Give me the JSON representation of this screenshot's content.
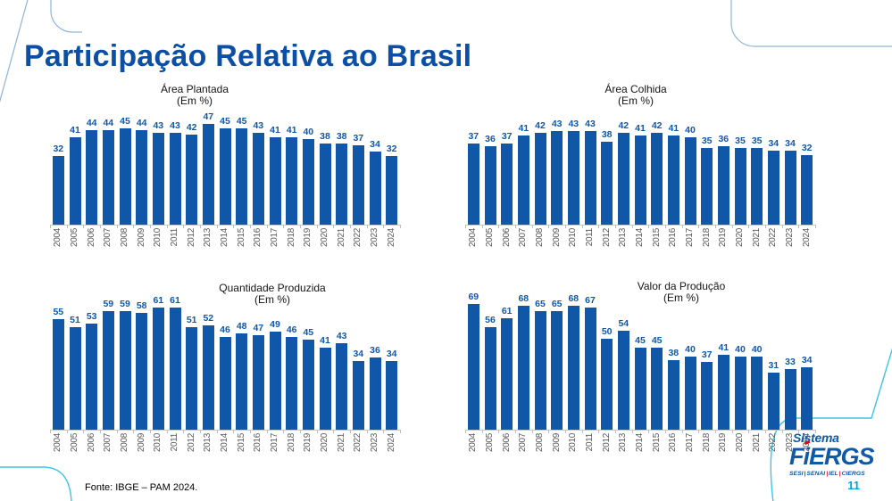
{
  "slide": {
    "title": "Participação Relativa ao Brasil",
    "source": "Fonte: IBGE – PAM 2024.",
    "page_number": "11",
    "logo": {
      "line1": "Sistema",
      "line2_prefix": "F",
      "line2_i": "i",
      "line2_suffix": "ERGS",
      "sub_parts": [
        "SESI",
        "SENAI",
        "IEL",
        "CIERGS"
      ]
    }
  },
  "colors": {
    "bar": "#1157A8",
    "title": "#0B4FA6",
    "value_label": "#1157A8",
    "axis_label": "#595959",
    "deco_top": "#8FB3DA",
    "deco_bottom": "#3FC4E6",
    "page_number": "#00A3DC",
    "logo_blue": "#0E59A9",
    "logo_red": "#E30613"
  },
  "chart_data": [
    {
      "type": "bar",
      "title": "Área Plantada",
      "subtitle": "(Em %)",
      "categories": [
        "2004",
        "2005",
        "2006",
        "2007",
        "2008",
        "2009",
        "2010",
        "2011",
        "2012",
        "2013",
        "2014",
        "2015",
        "2016",
        "2017",
        "2018",
        "2019",
        "2020",
        "2021",
        "2022",
        "2023",
        "2024"
      ],
      "values": [
        32,
        41,
        44,
        44,
        45,
        44,
        43,
        43,
        42,
        47,
        45,
        45,
        43,
        41,
        41,
        40,
        38,
        38,
        37,
        34,
        32
      ],
      "xlabel": "",
      "ylabel": "",
      "ylim": [
        0,
        50
      ],
      "grid": false,
      "legend": "none"
    },
    {
      "type": "bar",
      "title": "Área Colhida",
      "subtitle": "(Em %)",
      "categories": [
        "2004",
        "2005",
        "2006",
        "2007",
        "2008",
        "2009",
        "2010",
        "2011",
        "2012",
        "2013",
        "2014",
        "2015",
        "2016",
        "2017",
        "2018",
        "2019",
        "2020",
        "2021",
        "2022",
        "2023",
        "2024"
      ],
      "values": [
        37,
        36,
        37,
        41,
        42,
        43,
        43,
        43,
        38,
        42,
        41,
        42,
        41,
        40,
        35,
        36,
        35,
        35,
        34,
        34,
        32
      ],
      "xlabel": "",
      "ylabel": "",
      "ylim": [
        0,
        50
      ],
      "grid": false,
      "legend": "none"
    },
    {
      "type": "bar",
      "title": "Quantidade Produzida",
      "subtitle": "(Em %)",
      "categories": [
        "2004",
        "2005",
        "2006",
        "2007",
        "2008",
        "2009",
        "2010",
        "2011",
        "2012",
        "2013",
        "2014",
        "2015",
        "2016",
        "2017",
        "2018",
        "2019",
        "2020",
        "2021",
        "2022",
        "2023",
        "2024"
      ],
      "values": [
        55,
        51,
        53,
        59,
        59,
        58,
        61,
        61,
        51,
        52,
        46,
        48,
        47,
        49,
        46,
        45,
        41,
        43,
        34,
        36,
        34
      ],
      "xlabel": "",
      "ylabel": "",
      "ylim": [
        0,
        70
      ],
      "grid": false,
      "legend": "none"
    },
    {
      "type": "bar",
      "title": "Valor da Produção",
      "subtitle": "(Em %)",
      "categories": [
        "2004",
        "2005",
        "2006",
        "2007",
        "2008",
        "2009",
        "2010",
        "2011",
        "2012",
        "2013",
        "2014",
        "2015",
        "2016",
        "2017",
        "2018",
        "2019",
        "2020",
        "2021",
        "2022",
        "2023",
        "2024"
      ],
      "values": [
        69,
        56,
        61,
        68,
        65,
        65,
        68,
        67,
        50,
        54,
        45,
        45,
        38,
        40,
        37,
        41,
        40,
        40,
        31,
        33,
        34
      ],
      "xlabel": "",
      "ylabel": "",
      "ylim": [
        0,
        75
      ],
      "grid": false,
      "legend": "none"
    }
  ]
}
